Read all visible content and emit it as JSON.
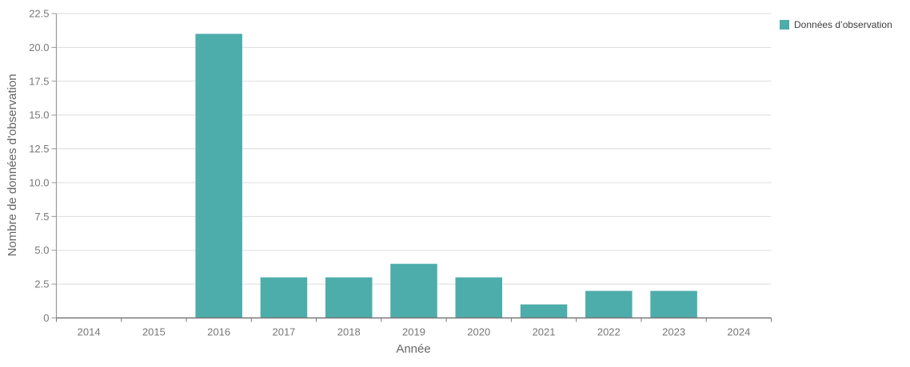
{
  "chart_data": {
    "type": "bar",
    "categories": [
      "2014",
      "2015",
      "2016",
      "2017",
      "2018",
      "2019",
      "2020",
      "2021",
      "2022",
      "2023",
      "2024"
    ],
    "values": [
      0,
      0,
      21,
      3,
      3,
      4,
      3,
      1,
      2,
      2,
      0
    ],
    "series_name": "Données d’observation",
    "xlabel": "Année",
    "ylabel": "Nombre de données d'observation",
    "ylim": [
      0,
      22.5
    ],
    "ytick_step": 2.5,
    "ytick_labels": [
      "0",
      "2.5",
      "5.0",
      "7.5",
      "10.0",
      "12.5",
      "15.0",
      "17.5",
      "20.0",
      "22.5"
    ],
    "grid": true,
    "legend_position": "top-right",
    "colors": {
      "bar": "#4dadaa",
      "grid": "#dddddd",
      "y_axis": "#999999",
      "x_axis": "#777777",
      "tick_text": "#777777",
      "axis_title_text": "#666666",
      "legend_text": "#3d3d3d"
    }
  }
}
